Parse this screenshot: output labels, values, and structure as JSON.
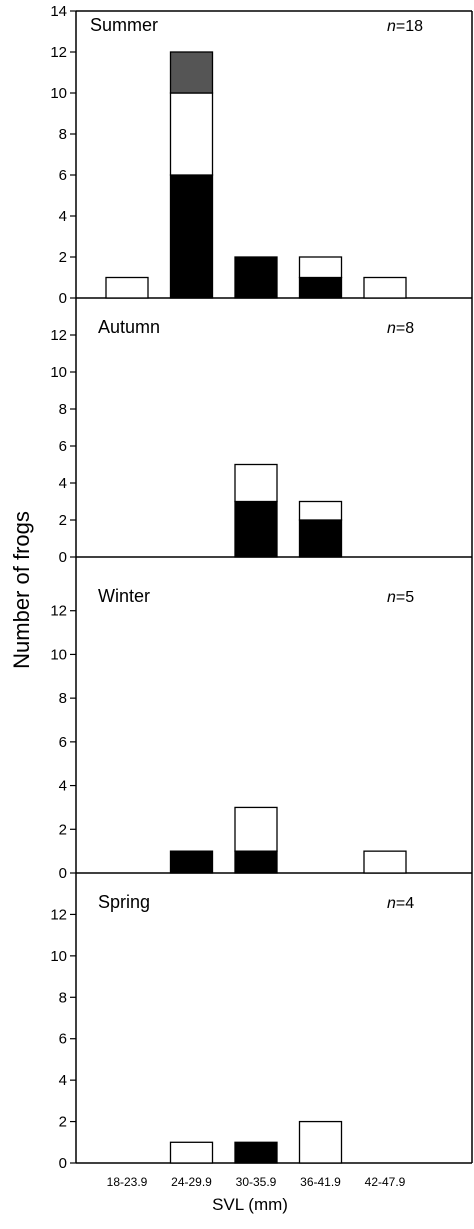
{
  "chart_data": {
    "type": "bar",
    "stacked": true,
    "ylabel": "Number of frogs",
    "xlabel": "SVL (mm)",
    "categories": [
      "18-23.9",
      "24-29.9",
      "30-35.9",
      "36-41.9",
      "42-47.9"
    ],
    "colors": {
      "black": "#000000",
      "white": "#ffffff",
      "grey": "#555555"
    },
    "panels": [
      {
        "title": "Summer",
        "n_label": "n",
        "n_value": "=18",
        "ylim": [
          0,
          14
        ],
        "yticks": [
          0,
          2,
          4,
          6,
          8,
          10,
          12,
          14
        ],
        "series": [
          {
            "color": "black",
            "values": [
              0,
              6,
              2,
              1,
              0
            ]
          },
          {
            "color": "white",
            "values": [
              1,
              4,
              0,
              1,
              1
            ]
          },
          {
            "color": "grey",
            "values": [
              0,
              2,
              0,
              0,
              0
            ]
          }
        ]
      },
      {
        "title": "Autumn",
        "n_label": "n",
        "n_value": "=8",
        "ylim": [
          0,
          14
        ],
        "yticks": [
          0,
          2,
          4,
          6,
          8,
          10,
          12
        ],
        "series": [
          {
            "color": "black",
            "values": [
              0,
              0,
              3,
              2,
              0
            ]
          },
          {
            "color": "white",
            "values": [
              0,
              0,
              2,
              1,
              0
            ]
          }
        ]
      },
      {
        "title": "Winter",
        "n_label": "n",
        "n_value": "=5",
        "ylim": [
          0,
          14
        ],
        "yticks": [
          0,
          2,
          4,
          6,
          8,
          10,
          12
        ],
        "series": [
          {
            "color": "black",
            "values": [
              0,
              1,
              1,
              0,
              0
            ]
          },
          {
            "color": "white",
            "values": [
              0,
              0,
              2,
              0,
              1
            ]
          }
        ]
      },
      {
        "title": "Spring",
        "n_label": "n",
        "n_value": "=4",
        "ylim": [
          0,
          14
        ],
        "yticks": [
          0,
          2,
          4,
          6,
          8,
          10,
          12
        ],
        "series": [
          {
            "color": "black",
            "values": [
              0,
              0,
              1,
              0,
              0
            ]
          },
          {
            "color": "white",
            "values": [
              0,
              1,
              0,
              2,
              0
            ]
          }
        ]
      }
    ]
  }
}
